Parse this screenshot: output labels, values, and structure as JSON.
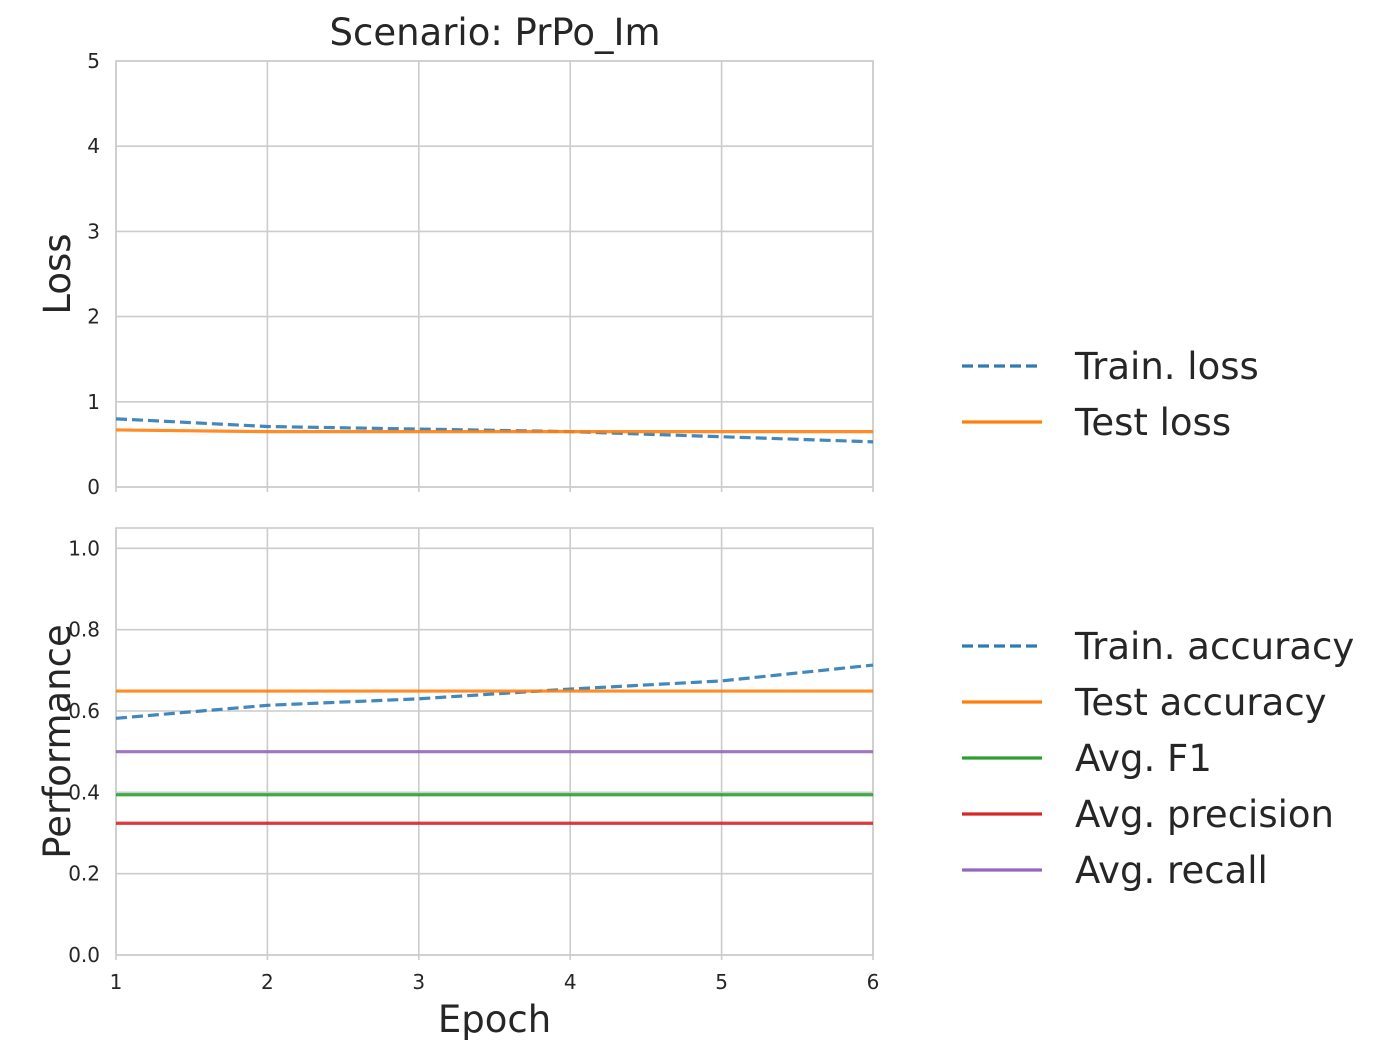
{
  "title": "Scenario: PrPo_Im",
  "colors": {
    "train": "#2e7bb5",
    "test": "#ff7f0e",
    "f1": "#2ca02c",
    "precision": "#d62728",
    "recall": "#9467bd",
    "grid": "#cccccc"
  },
  "chart_data": [
    {
      "type": "line",
      "title": "Scenario: PrPo_Im",
      "xlabel": "",
      "ylabel": "Loss",
      "x": [
        1,
        2,
        3,
        4,
        5,
        6
      ],
      "xlim": [
        1,
        6
      ],
      "ylim": [
        0,
        5
      ],
      "yticks": [
        "0",
        "1",
        "2",
        "3",
        "4",
        "5"
      ],
      "grid": true,
      "legend_position": "right",
      "series": [
        {
          "name": "Train. loss",
          "style": "dashed",
          "color": "#2e7bb5",
          "values": [
            0.8,
            0.71,
            0.68,
            0.65,
            0.59,
            0.53
          ]
        },
        {
          "name": "Test loss",
          "style": "solid",
          "color": "#ff7f0e",
          "values": [
            0.67,
            0.65,
            0.65,
            0.65,
            0.65,
            0.65
          ]
        }
      ]
    },
    {
      "type": "line",
      "title": "",
      "xlabel": "Epoch",
      "ylabel": "Performance",
      "x": [
        1,
        2,
        3,
        4,
        5,
        6
      ],
      "xlim": [
        1,
        6
      ],
      "xticks": [
        "1",
        "2",
        "3",
        "4",
        "5",
        "6"
      ],
      "ylim": [
        0,
        1.05
      ],
      "yticks": [
        "0.0",
        "0.2",
        "0.4",
        "0.6",
        "0.8",
        "1.0"
      ],
      "grid": true,
      "legend_position": "right",
      "series": [
        {
          "name": "Train. accuracy",
          "style": "dashed",
          "color": "#2e7bb5",
          "values": [
            0.582,
            0.614,
            0.63,
            0.654,
            0.674,
            0.713
          ]
        },
        {
          "name": "Test accuracy",
          "style": "solid",
          "color": "#ff7f0e",
          "values": [
            0.649,
            0.649,
            0.649,
            0.649,
            0.649,
            0.649
          ]
        },
        {
          "name": "Avg. F1",
          "style": "solid",
          "color": "#2ca02c",
          "values": [
            0.394,
            0.394,
            0.394,
            0.394,
            0.394,
            0.394
          ]
        },
        {
          "name": "Avg. precision",
          "style": "solid",
          "color": "#d62728",
          "values": [
            0.324,
            0.324,
            0.324,
            0.324,
            0.324,
            0.324
          ]
        },
        {
          "name": "Avg. recall",
          "style": "solid",
          "color": "#9467bd",
          "values": [
            0.5,
            0.5,
            0.5,
            0.5,
            0.5,
            0.5
          ]
        }
      ]
    }
  ]
}
